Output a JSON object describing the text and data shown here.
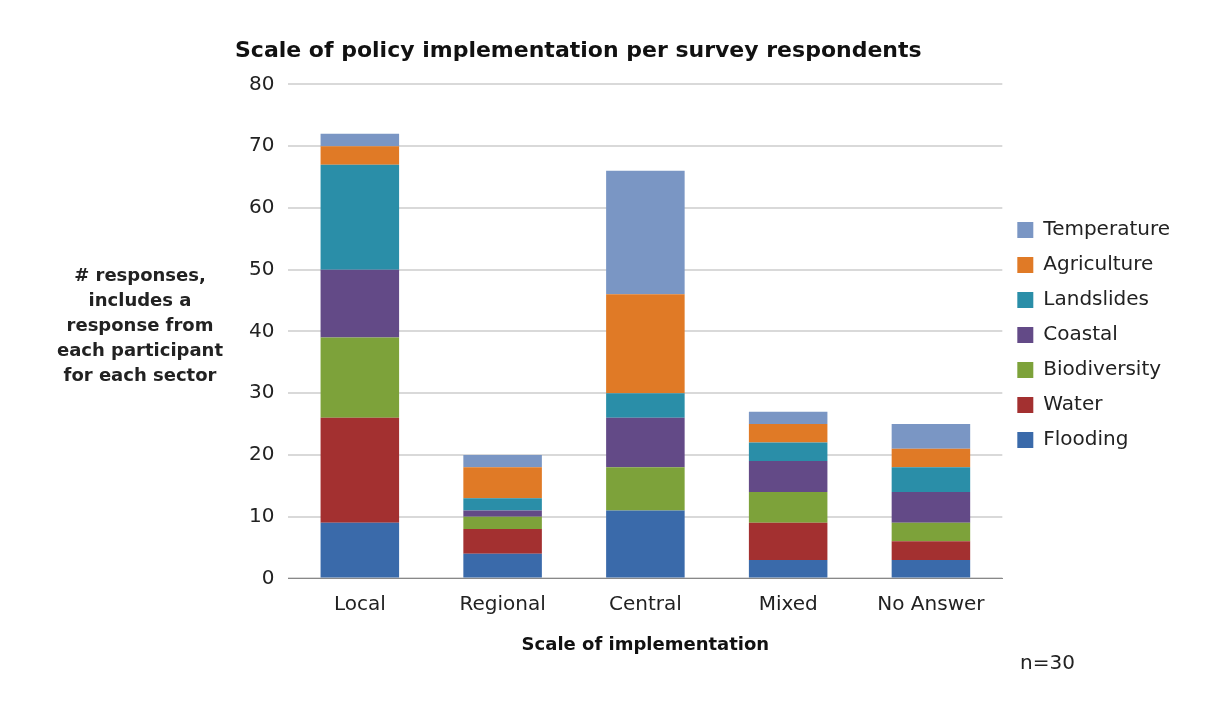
{
  "chart_data": {
    "type": "bar",
    "title": "Scale of policy implementation per survey respondents",
    "xlabel": "Scale of implementation",
    "ylabel": "# responses, includes a response from each participant for each sector",
    "categories": [
      "Local",
      "Regional",
      "Central",
      "Mixed",
      "No Answer"
    ],
    "stacked": true,
    "ylim": [
      0,
      80
    ],
    "yticks": [
      0,
      10,
      20,
      30,
      40,
      50,
      60,
      70,
      80
    ],
    "grid": "y",
    "legend": "right",
    "annotations": [
      "n=30"
    ],
    "series": [
      {
        "name": "Flooding",
        "color": "#3a6aaa",
        "values": [
          9,
          4,
          11,
          3,
          3
        ]
      },
      {
        "name": "Water",
        "color": "#a33030",
        "values": [
          17,
          4,
          0,
          6,
          3
        ]
      },
      {
        "name": "Biodiversity",
        "color": "#7da23a",
        "values": [
          13,
          2,
          7,
          5,
          3
        ]
      },
      {
        "name": "Coastal",
        "color": "#634a87",
        "values": [
          11,
          1,
          8,
          5,
          5
        ]
      },
      {
        "name": "Landslides",
        "color": "#2a8ea8",
        "values": [
          17,
          2,
          4,
          3,
          4
        ]
      },
      {
        "name": "Agriculture",
        "color": "#e07a26",
        "values": [
          3,
          5,
          16,
          3,
          3
        ]
      },
      {
        "name": "Temperature",
        "color": "#7a96c4",
        "values": [
          2,
          2,
          20,
          2,
          4
        ]
      }
    ]
  }
}
